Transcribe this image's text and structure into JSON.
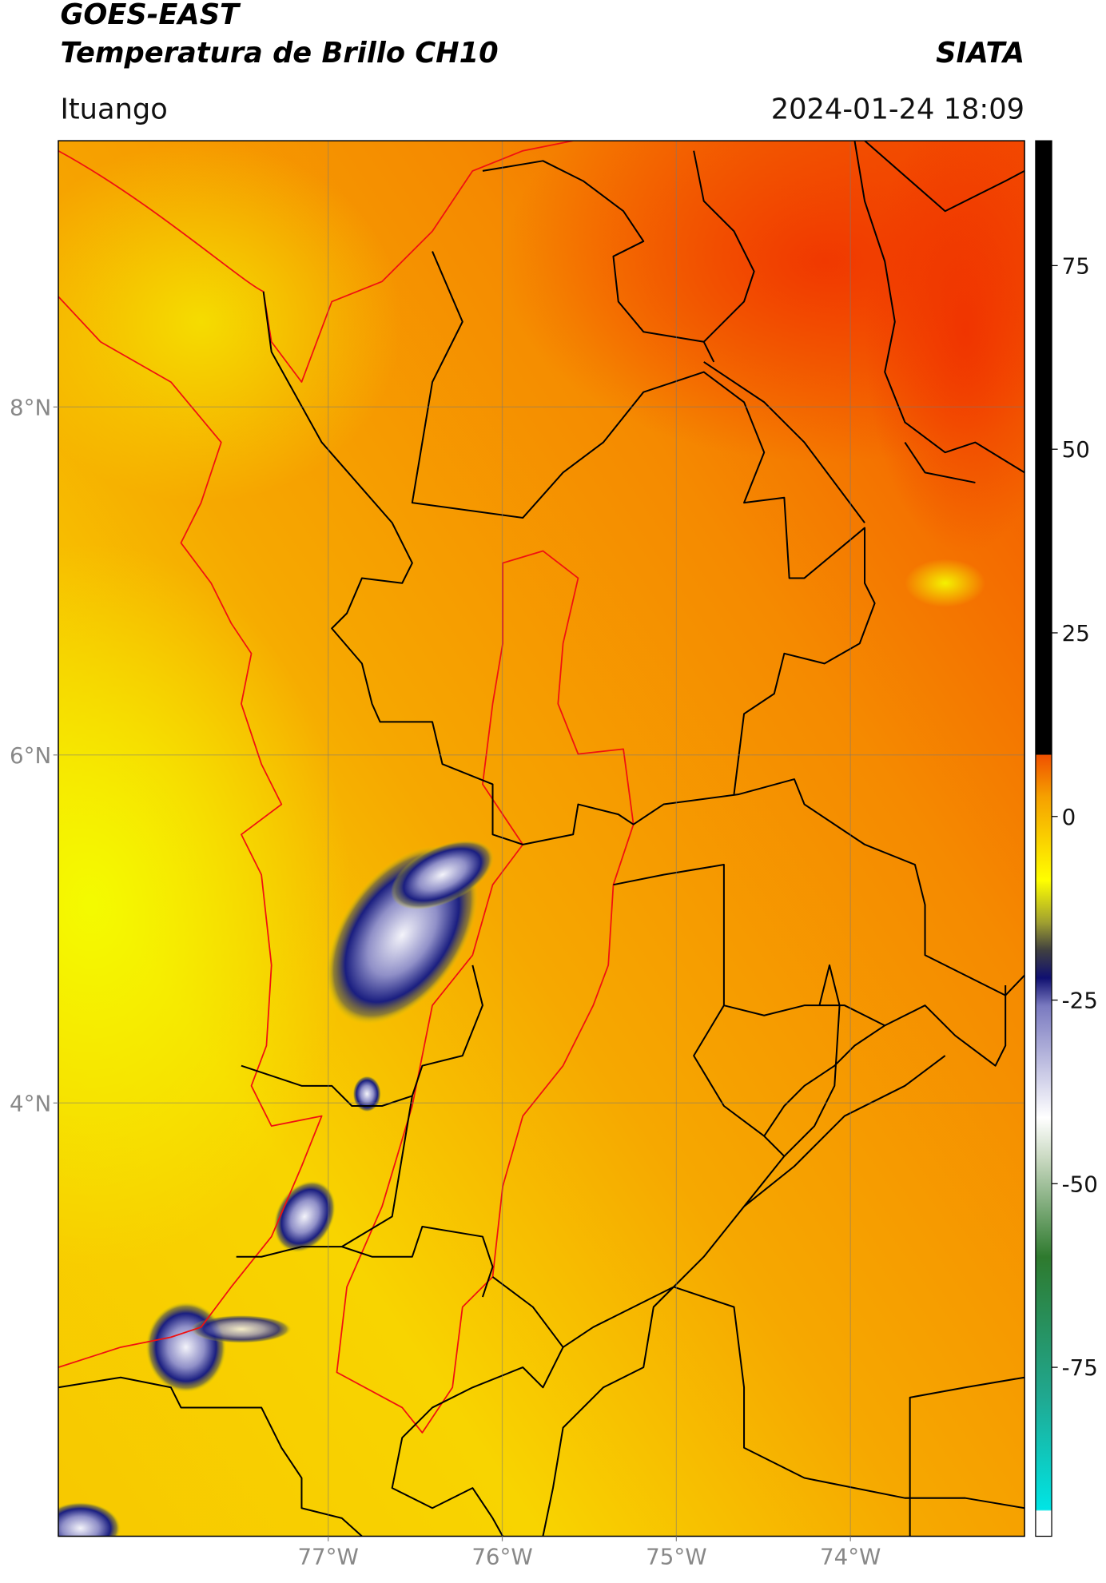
{
  "header": {
    "title_line1": "GOES-EAST",
    "title_line2": "Temperatura de Brillo CH10",
    "agency": "SIATA",
    "location": "Ituango",
    "datetime": "2024-01-24 18:09"
  },
  "map": {
    "xlim": [
      -78.55,
      -73.0
    ],
    "ylim": [
      1.51,
      9.53
    ],
    "xticks": [
      {
        "value": -77,
        "label": "77°W"
      },
      {
        "value": -76,
        "label": "76°W"
      },
      {
        "value": -75,
        "label": "75°W"
      },
      {
        "value": -74,
        "label": "74°W"
      }
    ],
    "yticks": [
      {
        "value": 8,
        "label": "8°N"
      },
      {
        "value": 6,
        "label": "6°N"
      },
      {
        "value": 4,
        "label": "4°N"
      }
    ],
    "grid": true
  },
  "colorbar": {
    "ylim": [
      -98,
      92
    ],
    "yticks": [
      75,
      50,
      25,
      0,
      -25,
      -50,
      -75
    ]
  }
}
